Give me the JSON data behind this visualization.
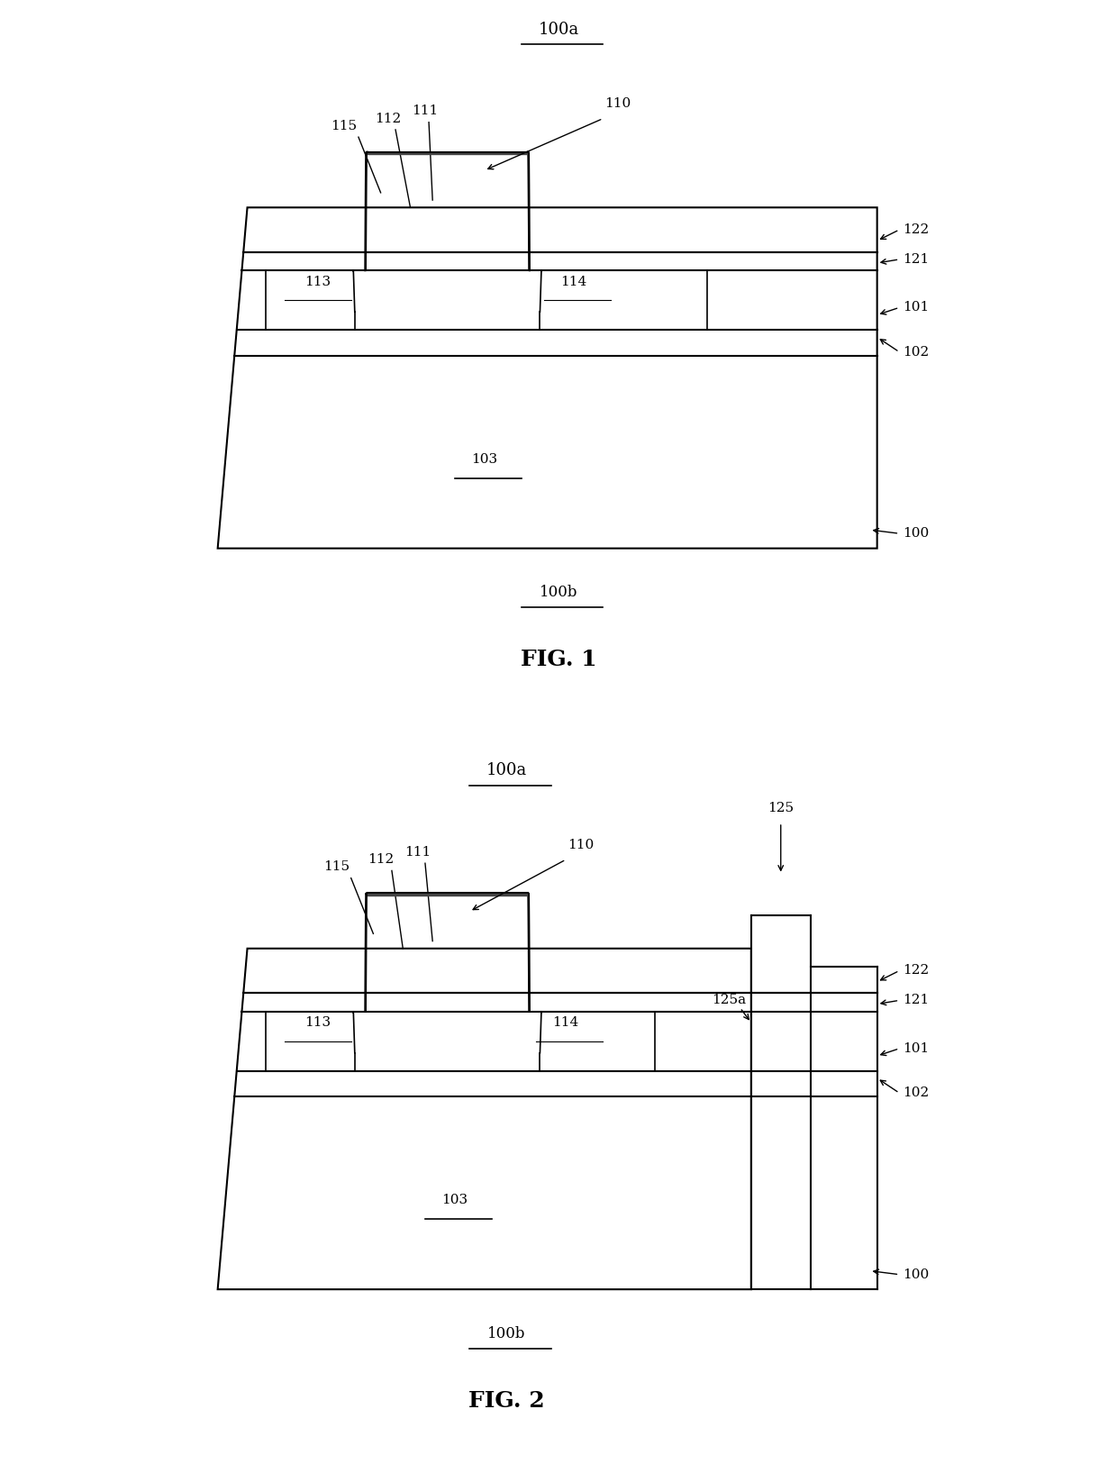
{
  "fig1": {
    "label_100a": "100a",
    "label_100b": "100b",
    "label_fig": "FIG. 1",
    "label_110": "110",
    "label_111": "111",
    "label_112": "112",
    "label_113": "113",
    "label_114": "114",
    "label_115": "115",
    "label_100": "100",
    "label_101": "101",
    "label_102": "102",
    "label_103": "103",
    "label_121": "121",
    "label_122": "122"
  },
  "fig2": {
    "label_100a": "100a",
    "label_100b": "100b",
    "label_fig": "FIG. 2",
    "label_110": "110",
    "label_111": "111",
    "label_112": "112",
    "label_113": "113",
    "label_114": "114",
    "label_115": "115",
    "label_100": "100",
    "label_101": "101",
    "label_102": "102",
    "label_103": "103",
    "label_121": "121",
    "label_122": "122",
    "label_125": "125",
    "label_125a": "125a"
  },
  "line_color": "#000000",
  "bg_color": "#ffffff",
  "font_size_label": 11,
  "font_size_fig": 18,
  "font_size_caption": 13
}
